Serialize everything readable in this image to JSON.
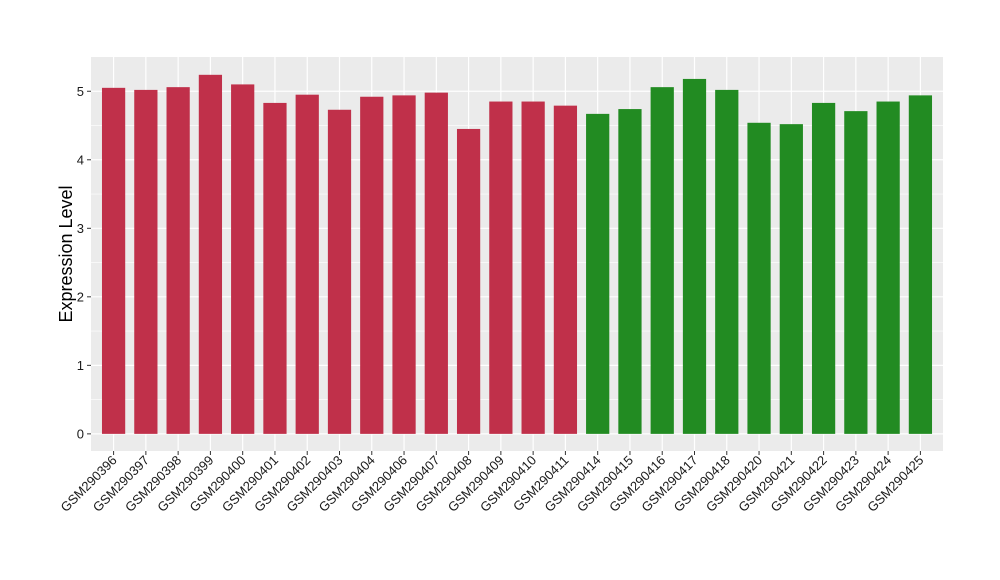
{
  "chart_data": {
    "type": "bar",
    "title": "",
    "xlabel": "",
    "ylabel": "Expression Level",
    "ylim": [
      -0.25,
      5.5
    ],
    "yticks": [
      0,
      1,
      2,
      3,
      4,
      5
    ],
    "grid": true,
    "background": "#ebebeb",
    "gridline_color": "#ffffff",
    "categories": [
      "GSM290396",
      "GSM290397",
      "GSM290398",
      "GSM290399",
      "GSM290400",
      "GSM290401",
      "GSM290402",
      "GSM290403",
      "GSM290404",
      "GSM290406",
      "GSM290407",
      "GSM290408",
      "GSM290409",
      "GSM290410",
      "GSM290411",
      "GSM290414",
      "GSM290415",
      "GSM290416",
      "GSM290417",
      "GSM290418",
      "GSM290420",
      "GSM290421",
      "GSM290422",
      "GSM290423",
      "GSM290424",
      "GSM290425"
    ],
    "values": [
      5.05,
      5.02,
      5.06,
      5.24,
      5.1,
      4.83,
      4.95,
      4.73,
      4.92,
      4.94,
      4.98,
      4.45,
      4.85,
      4.85,
      4.79,
      4.67,
      4.74,
      5.06,
      5.18,
      5.02,
      4.54,
      4.52,
      4.83,
      4.71,
      4.85,
      4.94
    ],
    "groups": [
      "a",
      "a",
      "a",
      "a",
      "a",
      "a",
      "a",
      "a",
      "a",
      "a",
      "a",
      "a",
      "a",
      "a",
      "a",
      "b",
      "b",
      "b",
      "b",
      "b",
      "b",
      "b",
      "b",
      "b",
      "b",
      "b"
    ],
    "group_colors": {
      "a": "#c0304a",
      "b": "#228b22"
    }
  }
}
